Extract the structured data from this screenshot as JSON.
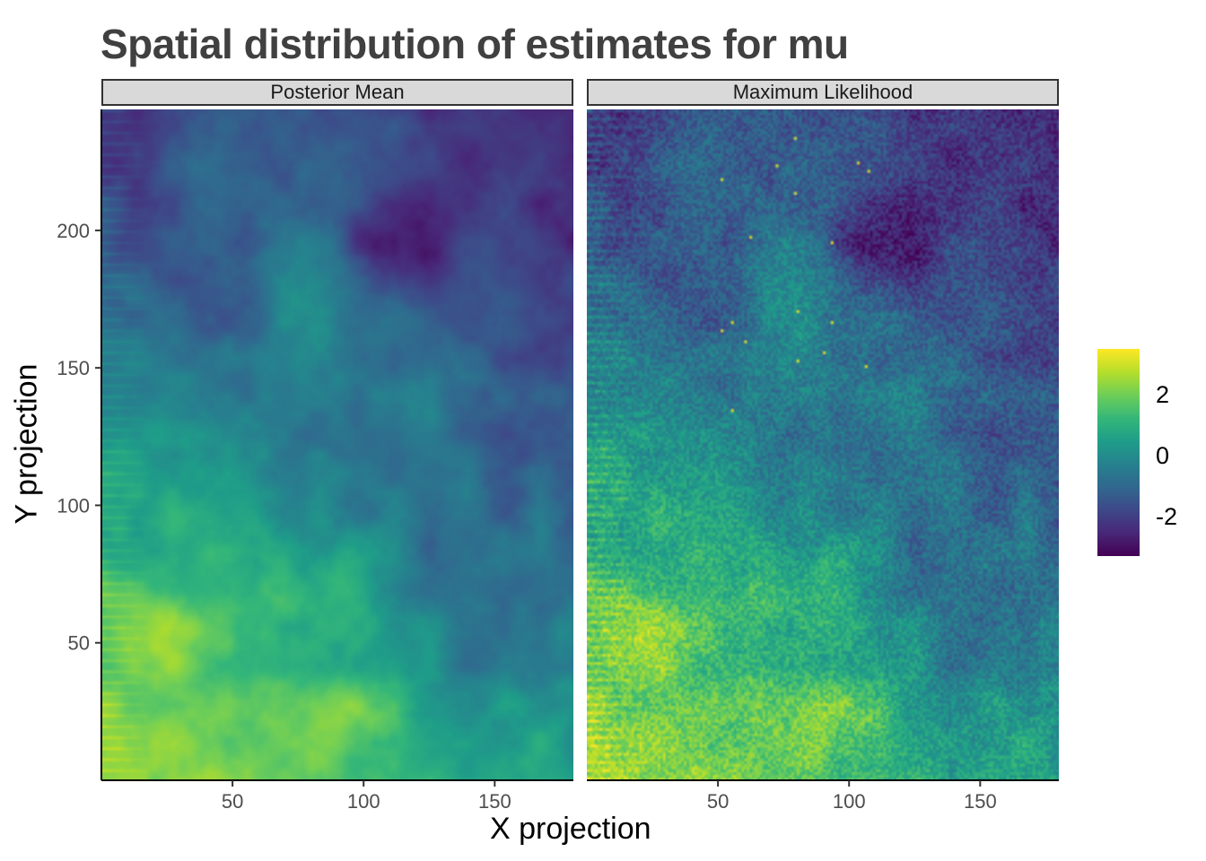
{
  "chart_data": {
    "type": "heatmap",
    "title": "Spatial distribution of estimates for mu",
    "xlabel": "X projection",
    "ylabel": "Y projection",
    "xlim": [
      0,
      180
    ],
    "ylim": [
      0,
      244
    ],
    "x_ticks": [
      50,
      100,
      150
    ],
    "y_ticks": [
      50,
      100,
      150,
      200
    ],
    "x_tick_labels": [
      "50",
      "100",
      "150"
    ],
    "y_tick_labels": [
      "50",
      "100",
      "150",
      "200"
    ],
    "grid": false,
    "colorscale": "viridis",
    "color_range": [
      -3.3,
      3.5
    ],
    "legend": {
      "position": "right",
      "ticks": [
        2,
        0,
        -2
      ],
      "tick_labels": [
        "2",
        "0",
        "-2"
      ],
      "colors": [
        "#fde725",
        "#5ec962",
        "#21918c",
        "#3b528b",
        "#440154"
      ]
    },
    "facets": [
      {
        "label": "Posterior Mean",
        "grid_resolution": [
          180,
          244
        ],
        "value_summary": "Smooth field: high (about 1 to 3.5) in the lower-left and bottom, low (about -3) in the upper-right; a diagonal low-valued band runs from the top centre toward the lower right.",
        "approximate_values": [
          {
            "x": 20,
            "y": 55,
            "value": 3.2
          },
          {
            "x": 95,
            "y": 75,
            "value": 2.3
          },
          {
            "x": 95,
            "y": 25,
            "value": 2.2
          },
          {
            "x": 40,
            "y": 100,
            "value": 1.8
          },
          {
            "x": 60,
            "y": 150,
            "value": 0.0
          },
          {
            "x": 80,
            "y": 170,
            "value": 0.5
          },
          {
            "x": 110,
            "y": 195,
            "value": -2.9
          },
          {
            "x": 130,
            "y": 230,
            "value": -1.8
          },
          {
            "x": 160,
            "y": 110,
            "value": -2.2
          },
          {
            "x": 170,
            "y": 20,
            "value": 2.0
          }
        ]
      },
      {
        "label": "Maximum Likelihood",
        "grid_resolution": [
          180,
          244
        ],
        "value_summary": "Same large-scale pattern as the posterior mean but with pixel-level noise and horizontal streaks along the left edge; isolated bright pixels near the centre.",
        "approximate_values": [
          {
            "x": 20,
            "y": 55,
            "value": 3.0
          },
          {
            "x": 95,
            "y": 75,
            "value": 2.0
          },
          {
            "x": 40,
            "y": 100,
            "value": 1.5
          },
          {
            "x": 60,
            "y": 150,
            "value": -0.3
          },
          {
            "x": 110,
            "y": 195,
            "value": -3.0
          },
          {
            "x": 120,
            "y": 150,
            "value": -2.4
          },
          {
            "x": 160,
            "y": 110,
            "value": -2.3
          },
          {
            "x": 170,
            "y": 20,
            "value": 1.8
          }
        ]
      }
    ]
  }
}
